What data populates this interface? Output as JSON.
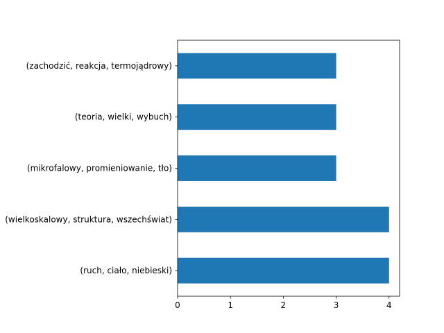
{
  "chart_data": {
    "type": "bar",
    "orientation": "horizontal",
    "title": "",
    "xlabel": "",
    "ylabel": "",
    "categories": [
      "(ruch, ciało, niebieski)",
      "(wielkoskalowy, struktura, wszechświat)",
      "(mikrofalowy, promieniowanie, tło)",
      "(teoria, wielki, wybuch)",
      "(zachodzić, reakcja, termojądrowy)"
    ],
    "values": [
      4,
      4,
      3,
      3,
      3
    ],
    "xlim": [
      0,
      4.2
    ],
    "xticks": [
      0,
      1,
      2,
      3,
      4
    ],
    "grid": false,
    "bar_color": "#1f77b4"
  }
}
